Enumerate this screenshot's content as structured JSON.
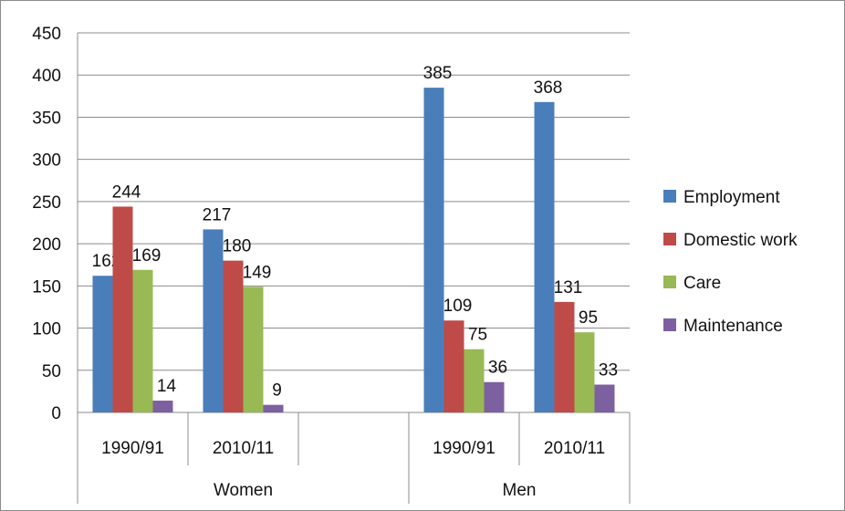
{
  "chart_data": {
    "type": "bar",
    "title": "",
    "xlabel": "",
    "ylabel": "",
    "ylim": [
      0,
      450
    ],
    "yticks": [
      0,
      50,
      100,
      150,
      200,
      250,
      300,
      350,
      400,
      450
    ],
    "grid": true,
    "legend_position": "right",
    "groups": [
      {
        "label": "Women",
        "categories": [
          "1990/91",
          "2010/11",
          ""
        ]
      },
      {
        "label": "Men",
        "categories": [
          "1990/91",
          "2010/11"
        ]
      }
    ],
    "categories": [
      "1990/91",
      "2010/11",
      "",
      "1990/91",
      "2010/11"
    ],
    "series": [
      {
        "name": "Employment",
        "color": "#4a7ebb",
        "values": [
          162,
          217,
          null,
          385,
          368
        ]
      },
      {
        "name": "Domestic work",
        "color": "#be4b48",
        "values": [
          244,
          180,
          null,
          109,
          131
        ]
      },
      {
        "name": "Care",
        "color": "#98b954",
        "values": [
          169,
          149,
          null,
          75,
          95
        ]
      },
      {
        "name": "Maintenance",
        "color": "#7d60a0",
        "values": [
          14,
          9,
          null,
          36,
          33
        ]
      }
    ]
  }
}
